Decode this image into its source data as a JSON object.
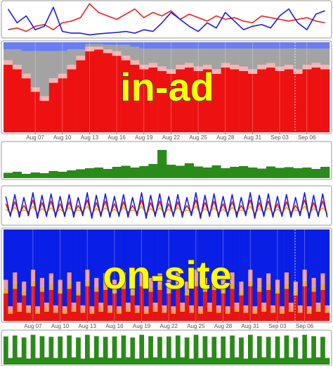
{
  "chart_data": [
    {
      "type": "line",
      "ylim": [
        0,
        100
      ],
      "series": [
        {
          "color": "#e42222",
          "values": [
            20,
            25,
            15,
            30,
            35,
            20,
            40,
            45,
            55,
            95,
            70,
            60,
            50,
            65,
            80,
            55,
            70,
            60,
            75,
            50,
            65,
            55,
            45,
            60,
            50,
            55,
            45,
            40,
            60,
            55,
            50,
            45,
            50,
            55,
            45,
            40
          ]
        },
        {
          "color": "#1c1cd8",
          "values": [
            80,
            40,
            60,
            20,
            30,
            85,
            15,
            10,
            10,
            5,
            8,
            10,
            12,
            15,
            10,
            20,
            15,
            40,
            70,
            50,
            30,
            15,
            40,
            25,
            70,
            45,
            20,
            30,
            35,
            25,
            60,
            80,
            40,
            20,
            65,
            75
          ]
        }
      ]
    },
    {
      "type": "stacked_area",
      "ylim": [
        0,
        100
      ],
      "grid": true,
      "annotation": "in-ad",
      "categories": [
        null,
        null,
        null,
        "Aug 07",
        null,
        null,
        "Aug 10",
        null,
        null,
        "Aug 13",
        null,
        null,
        "Aug 16",
        null,
        null,
        "Aug 19",
        null,
        null,
        "Aug 22",
        null,
        null,
        "Aug 25",
        null,
        null,
        "Aug 28",
        null,
        null,
        "Aug 31",
        null,
        null,
        "Sep 03",
        null,
        null,
        "Sep 06",
        null,
        null
      ],
      "series": [
        {
          "color": "#ee1111",
          "values": [
            75,
            70,
            60,
            45,
            35,
            55,
            60,
            70,
            80,
            90,
            92,
            88,
            85,
            80,
            75,
            70,
            72,
            68,
            65,
            70,
            72,
            68,
            70,
            65,
            72,
            70,
            68,
            65,
            70,
            72,
            68,
            70,
            65,
            70,
            72,
            70
          ]
        },
        {
          "color": "#f6b4b4",
          "values": [
            5,
            5,
            5,
            5,
            5,
            5,
            5,
            5,
            5,
            5,
            3,
            4,
            5,
            5,
            5,
            5,
            5,
            5,
            5,
            5,
            5,
            5,
            5,
            5,
            5,
            5,
            5,
            5,
            5,
            5,
            5,
            5,
            5,
            5,
            5,
            5
          ]
        },
        {
          "color": "#a3a3a3",
          "values": [
            12,
            17,
            25,
            40,
            50,
            30,
            25,
            17,
            7,
            3,
            3,
            5,
            7,
            12,
            15,
            18,
            16,
            20,
            23,
            18,
            16,
            20,
            18,
            23,
            16,
            18,
            20,
            23,
            18,
            16,
            20,
            18,
            23,
            18,
            16,
            18
          ]
        },
        {
          "color": "#6b7ef0",
          "values": [
            8,
            8,
            10,
            10,
            10,
            10,
            10,
            8,
            8,
            2,
            2,
            3,
            3,
            3,
            5,
            7,
            7,
            7,
            7,
            7,
            7,
            7,
            7,
            7,
            7,
            7,
            7,
            7,
            7,
            7,
            7,
            7,
            7,
            7,
            7,
            7
          ]
        }
      ]
    },
    {
      "type": "area",
      "ylim": [
        0,
        100
      ],
      "series": [
        {
          "color": "#2a8a1a",
          "values": [
            15,
            18,
            12,
            16,
            14,
            20,
            18,
            22,
            25,
            28,
            30,
            26,
            32,
            35,
            30,
            34,
            40,
            80,
            38,
            35,
            42,
            33,
            30,
            36,
            28,
            32,
            34,
            30,
            27,
            33,
            29,
            31,
            28,
            30,
            26,
            32
          ]
        }
      ]
    },
    {
      "type": "line",
      "ylim": [
        0,
        100
      ],
      "series": [
        {
          "color": "#f4b000",
          "values": [
            40,
            30,
            45,
            32,
            38,
            33,
            48,
            28,
            42,
            31,
            44,
            30,
            40,
            30,
            45,
            32,
            38,
            33,
            48,
            28,
            42,
            31,
            44,
            30,
            40,
            30,
            45,
            32,
            38,
            33,
            48,
            28,
            42,
            31,
            44,
            30,
            40,
            30,
            45,
            32,
            38,
            33,
            48,
            28,
            42,
            31,
            44,
            30,
            40,
            30,
            45,
            32,
            38,
            33,
            48,
            28,
            42,
            31,
            44,
            30,
            40,
            30,
            45,
            32,
            38,
            33,
            48,
            28,
            42,
            31,
            44,
            30
          ]
        },
        {
          "color": "#e42020",
          "values": [
            55,
            25,
            60,
            28,
            50,
            30,
            65,
            22,
            58,
            26,
            62,
            24,
            55,
            25,
            60,
            28,
            50,
            30,
            65,
            22,
            58,
            26,
            62,
            24,
            55,
            25,
            60,
            28,
            50,
            30,
            65,
            22,
            58,
            26,
            62,
            24,
            55,
            25,
            60,
            28,
            50,
            30,
            65,
            22,
            58,
            26,
            62,
            24,
            55,
            25,
            60,
            28,
            50,
            30,
            65,
            22,
            58,
            26,
            62,
            24,
            55,
            25,
            60,
            28,
            50,
            30,
            65,
            22,
            58,
            26,
            62,
            24
          ]
        },
        {
          "color": "#1c1cd8",
          "values": [
            75,
            20,
            80,
            18,
            72,
            22,
            85,
            15,
            78,
            20,
            82,
            18,
            75,
            20,
            80,
            18,
            72,
            22,
            85,
            15,
            78,
            20,
            82,
            18,
            75,
            20,
            80,
            18,
            72,
            22,
            85,
            15,
            78,
            20,
            82,
            18,
            75,
            20,
            80,
            18,
            72,
            22,
            85,
            15,
            78,
            20,
            82,
            18,
            75,
            20,
            80,
            18,
            72,
            22,
            85,
            15,
            78,
            20,
            82,
            18,
            75,
            20,
            80,
            18,
            72,
            22,
            85,
            15,
            78,
            20,
            82,
            18
          ]
        }
      ]
    },
    {
      "type": "stacked_area",
      "ylim": [
        0,
        100
      ],
      "grid": true,
      "annotation": "on-site",
      "categories": [
        null,
        null,
        null,
        null,
        null,
        null,
        "Aug 07",
        null,
        null,
        null,
        null,
        null,
        "Aug 10",
        null,
        null,
        null,
        null,
        null,
        "Aug 13",
        null,
        null,
        null,
        null,
        null,
        "Aug 16",
        null,
        null,
        null,
        null,
        null,
        "Aug 19",
        null,
        null,
        null,
        null,
        null,
        "Aug 22",
        null,
        null,
        null,
        null,
        null,
        "Aug 25",
        null,
        null,
        null,
        null,
        null,
        "Aug 28",
        null,
        null,
        null,
        null,
        null,
        "Aug 31",
        null,
        null,
        null,
        null,
        null,
        "Sep 03",
        null,
        null,
        null,
        null,
        null,
        "Sep 06",
        null,
        null,
        null,
        null,
        null
      ],
      "series": [
        {
          "color": "#e51515",
          "values": [
            30,
            8,
            35,
            10,
            28,
            9,
            38,
            8,
            32,
            10,
            34,
            9,
            30,
            8,
            35,
            10,
            28,
            9,
            38,
            8,
            32,
            10,
            34,
            9,
            30,
            8,
            35,
            10,
            28,
            9,
            38,
            8,
            32,
            10,
            34,
            9,
            30,
            8,
            35,
            10,
            28,
            9,
            38,
            8,
            32,
            10,
            34,
            9,
            30,
            8,
            35,
            10,
            28,
            9,
            38,
            8,
            32,
            10,
            34,
            9,
            30,
            8,
            35,
            10,
            28,
            9,
            38,
            8,
            32,
            10,
            34,
            9
          ]
        },
        {
          "color": "#f5a623",
          "values": [
            5,
            2,
            6,
            3,
            5,
            2,
            6,
            2,
            5,
            3,
            6,
            2,
            5,
            2,
            6,
            3,
            5,
            2,
            6,
            2,
            5,
            3,
            6,
            2,
            5,
            2,
            6,
            3,
            5,
            2,
            6,
            2,
            5,
            3,
            6,
            2,
            5,
            2,
            6,
            3,
            5,
            2,
            6,
            2,
            5,
            3,
            6,
            2,
            5,
            2,
            6,
            3,
            5,
            2,
            6,
            2,
            5,
            3,
            6,
            2,
            5,
            2,
            6,
            3,
            5,
            2,
            6,
            2,
            5,
            3,
            6,
            2
          ]
        },
        {
          "color": "#f29b9b",
          "values": [
            10,
            6,
            12,
            7,
            10,
            6,
            12,
            6,
            10,
            7,
            12,
            6,
            10,
            6,
            12,
            7,
            10,
            6,
            12,
            6,
            10,
            7,
            12,
            6,
            10,
            6,
            12,
            7,
            10,
            6,
            12,
            6,
            10,
            7,
            12,
            6,
            10,
            6,
            12,
            7,
            10,
            6,
            12,
            6,
            10,
            7,
            12,
            6,
            10,
            6,
            12,
            7,
            10,
            6,
            12,
            6,
            10,
            7,
            12,
            6,
            10,
            6,
            12,
            7,
            10,
            6,
            12,
            6,
            10,
            7,
            12,
            6
          ]
        },
        {
          "color": "#0a1fe6",
          "values": [
            55,
            84,
            47,
            80,
            57,
            83,
            44,
            84,
            53,
            80,
            48,
            83,
            55,
            84,
            47,
            80,
            57,
            83,
            44,
            84,
            53,
            80,
            48,
            83,
            55,
            84,
            47,
            80,
            57,
            83,
            44,
            84,
            53,
            80,
            48,
            83,
            55,
            84,
            47,
            80,
            57,
            83,
            44,
            84,
            53,
            80,
            48,
            83,
            55,
            84,
            47,
            80,
            57,
            83,
            44,
            84,
            53,
            80,
            48,
            83,
            55,
            84,
            47,
            80,
            57,
            83,
            44,
            84,
            53,
            80,
            48,
            83
          ]
        }
      ]
    },
    {
      "type": "area",
      "ylim": [
        0,
        100
      ],
      "series": [
        {
          "color": "#2a8a1a",
          "values": [
            85,
            20,
            88,
            22,
            82,
            18,
            90,
            20,
            86,
            22,
            84,
            20,
            85,
            20,
            88,
            22,
            82,
            18,
            90,
            20,
            86,
            22,
            84,
            20,
            85,
            20,
            88,
            22,
            82,
            18,
            90,
            20,
            86,
            22,
            84,
            20,
            85,
            20,
            88,
            22,
            82,
            18,
            90,
            20,
            86,
            22,
            84,
            20,
            85,
            20,
            88,
            22,
            82,
            18,
            90,
            20,
            86,
            22,
            84,
            20,
            85,
            20,
            88,
            22,
            82,
            18,
            90,
            20,
            86,
            22,
            84,
            20
          ]
        }
      ]
    }
  ]
}
